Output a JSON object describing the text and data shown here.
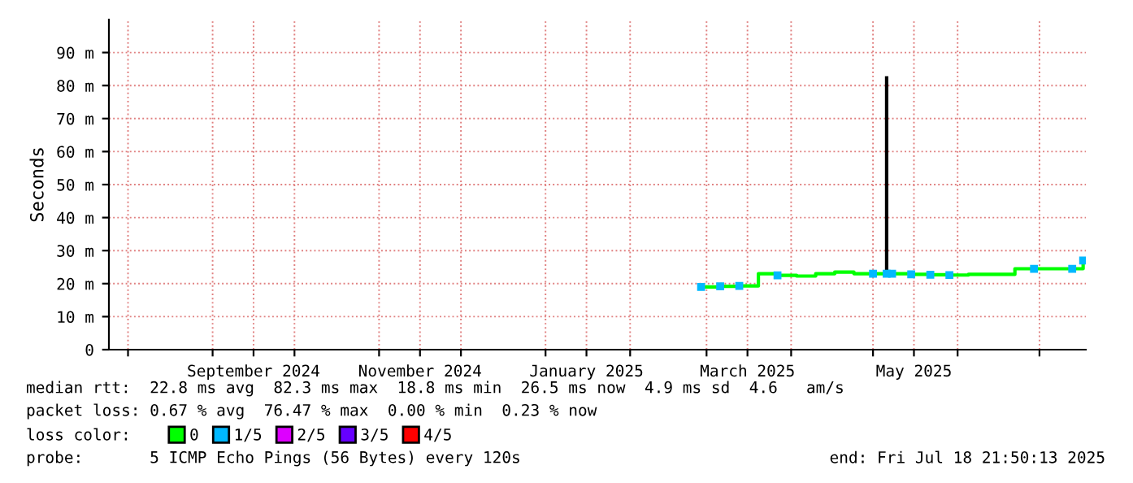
{
  "chart_data": {
    "type": "line",
    "ylabel": "Seconds",
    "xlim": [
      "2024-07-25",
      "2025-07-18"
    ],
    "xticks": [
      {
        "value": "2024-08-01",
        "label": null
      },
      {
        "value": "2024-09-01",
        "label": null
      },
      {
        "value": "2024-09-16",
        "label": "September 2024"
      },
      {
        "value": "2024-10-01",
        "label": null
      },
      {
        "value": "2024-11-01",
        "label": null
      },
      {
        "value": "2024-11-16",
        "label": "November 2024"
      },
      {
        "value": "2024-12-01",
        "label": null
      },
      {
        "value": "2025-01-01",
        "label": null
      },
      {
        "value": "2025-01-16",
        "label": "January 2025"
      },
      {
        "value": "2025-02-01",
        "label": null
      },
      {
        "value": "2025-03-01",
        "label": null
      },
      {
        "value": "2025-03-16",
        "label": "March 2025"
      },
      {
        "value": "2025-04-01",
        "label": null
      },
      {
        "value": "2025-05-01",
        "label": null
      },
      {
        "value": "2025-05-16",
        "label": "May 2025"
      },
      {
        "value": "2025-06-01",
        "label": null
      },
      {
        "value": "2025-07-01",
        "label": null
      }
    ],
    "ylim": [
      0,
      100
    ],
    "yticks": [
      0,
      {
        "value": 10,
        "label": "10 m"
      },
      {
        "value": 20,
        "label": "20 m"
      },
      {
        "value": 30,
        "label": "30 m"
      },
      {
        "value": 40,
        "label": "40 m"
      },
      {
        "value": 50,
        "label": "50 m"
      },
      {
        "value": 60,
        "label": "60 m"
      },
      {
        "value": 70,
        "label": "70 m"
      },
      {
        "value": 80,
        "label": "80 m"
      },
      {
        "value": 90,
        "label": "90 m"
      }
    ],
    "grid": true,
    "legend": "bottom",
    "legend_title": "loss color:",
    "x": [
      "2025-02-27",
      "2025-03-06",
      "2025-03-13",
      "2025-03-20",
      "2025-03-27",
      "2025-04-03",
      "2025-04-10",
      "2025-04-17",
      "2025-04-24",
      "2025-05-01",
      "2025-05-06",
      "2025-05-08",
      "2025-05-15",
      "2025-05-22",
      "2025-05-29",
      "2025-06-05",
      "2025-06-12",
      "2025-06-19",
      "2025-06-22",
      "2025-06-29",
      "2025-07-06",
      "2025-07-13",
      "2025-07-17"
    ],
    "series": [
      {
        "x": [
          "2025-05-06",
          "2025-05-06"
        ],
        "values": [
          23,
          82.3
        ],
        "color": "#000000"
      },
      {
        "name": "0",
        "type": "step",
        "color": "#00ff00",
        "values": [
          19,
          19.2,
          19.3,
          23,
          22.5,
          22.3,
          23,
          23.5,
          23,
          23,
          23,
          23,
          22.8,
          22.7,
          22.6,
          22.8,
          22.8,
          22.8,
          24.5,
          24.5,
          24.5,
          24.5,
          27
        ]
      },
      {
        "name": "1/5",
        "type": "scatter",
        "marker": "square",
        "color": "#00b8ff",
        "values": [
          19,
          19.2,
          19.3,
          null,
          22.5,
          null,
          null,
          null,
          null,
          23,
          23,
          23,
          22.8,
          22.7,
          22.6,
          null,
          null,
          null,
          null,
          24.5,
          null,
          24.5,
          27
        ]
      },
      {
        "name": "2/5",
        "type": "scatter",
        "marker": "square",
        "color": "#dd00ff",
        "values": [
          null,
          null,
          null,
          null,
          null,
          null,
          null,
          null,
          null,
          null,
          null,
          null,
          null,
          null,
          null,
          null,
          null,
          null,
          null,
          null,
          null,
          null,
          null
        ]
      },
      {
        "name": "3/5",
        "type": "scatter",
        "marker": "square",
        "color": "#6600ff",
        "values": [
          null,
          null,
          null,
          null,
          null,
          null,
          null,
          null,
          null,
          null,
          null,
          null,
          null,
          null,
          null,
          null,
          null,
          null,
          null,
          null,
          null,
          null,
          null
        ]
      },
      {
        "name": "4/5",
        "type": "scatter",
        "marker": "square",
        "color": "#ff0000",
        "values": [
          null,
          null,
          null,
          null,
          null,
          null,
          null,
          null,
          null,
          null,
          null,
          null,
          null,
          null,
          null,
          null,
          null,
          null,
          null,
          null,
          null,
          null,
          null
        ]
      }
    ],
    "annotations": [
      "median rtt:  22.8 ms avg  82.3 ms max  18.8 ms min  26.5 ms now  4.9 ms sd  4.6   am/s",
      "packet loss: 0.67 % avg  76.47 % max  0.00 % min  0.23 % now",
      "probe:       5 ICMP Echo Pings (56 Bytes) every 120s",
      "end: Fri Jul 18 21:50:13 2025"
    ]
  }
}
